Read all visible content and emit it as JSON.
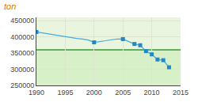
{
  "chart_data": {
    "type": "line",
    "title": "ton",
    "title_color": "#dd7700",
    "x": [
      1990,
      1991,
      1992,
      1993,
      1994,
      1995,
      1996,
      1997,
      1998,
      1999,
      2000,
      2001,
      2002,
      2003,
      2004,
      2005,
      2006,
      2007,
      2008,
      2009,
      2010,
      2011,
      2012,
      2013
    ],
    "series": [
      {
        "type": "line",
        "line_style": "solid",
        "color": "#44aadd",
        "values": [
          415000,
          412000,
          409000,
          406000,
          403000,
          400000,
          398000,
          395000,
          393000,
          390000,
          383000,
          385000,
          388000,
          391000,
          393000,
          393000,
          385000,
          378000,
          374000,
          356000,
          346000,
          330000,
          328000,
          306000
        ]
      },
      {
        "type": "scatter",
        "marker": "square",
        "color": "#2288cc",
        "values": [
          415000,
          null,
          null,
          null,
          null,
          null,
          null,
          null,
          null,
          null,
          383000,
          null,
          null,
          null,
          null,
          393000,
          null,
          378000,
          374000,
          356000,
          346000,
          330000,
          328000,
          306000
        ]
      }
    ],
    "xlim": [
      1990,
      2015
    ],
    "ylim": [
      250000,
      460000
    ],
    "xticks": [
      1990,
      1995,
      2000,
      2005,
      2010,
      2015
    ],
    "yticks": [
      250000,
      300000,
      350000,
      400000,
      450000
    ],
    "grid": true,
    "plot_bg_color": "#eaf5e0",
    "goal_line": {
      "value": 360000,
      "color": "#339933",
      "fill_below": "#d8f0c8"
    }
  }
}
